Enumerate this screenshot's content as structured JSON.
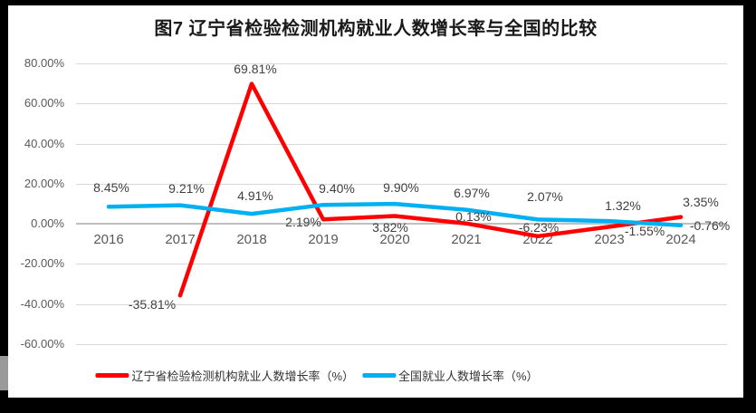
{
  "chart_data": {
    "type": "line",
    "title": "图7 辽宁省检验检测机构就业人数增长率与全国的比较",
    "categories": [
      "2016",
      "2017",
      "2018",
      "2019",
      "2020",
      "2021",
      "2022",
      "2023",
      "2024"
    ],
    "series": [
      {
        "name": "辽宁省检验检测机构就业人数增长率（%）",
        "color": "#ff0000",
        "values": [
          null,
          -35.81,
          69.81,
          2.19,
          3.82,
          0.13,
          -6.23,
          -1.55,
          3.35
        ]
      },
      {
        "name": "全国就业人数增长率（%）",
        "color": "#00b0f0",
        "values": [
          8.45,
          9.21,
          4.91,
          9.4,
          9.9,
          6.97,
          2.07,
          1.32,
          -0.76
        ]
      }
    ],
    "xlabel": "",
    "ylabel": "",
    "ylim": [
      -60,
      80
    ],
    "ytick_step": 20,
    "yticks": [
      "80.00%",
      "60.00%",
      "40.00%",
      "20.00%",
      "0.00%",
      "-20.00%",
      "-40.00%",
      "-60.00%"
    ],
    "grid": true,
    "data_labels": true,
    "data_label_format": "0.00%",
    "legend_position": "bottom"
  },
  "colors": {
    "frame_background": "#000000",
    "panel_background": "#ffffff",
    "gridline": "#d9d9d9",
    "axis_line": "#bfbfbf",
    "tick_text": "#595959",
    "data_label_text": "#404040",
    "series_liaoning": "#ff0000",
    "series_national": "#00b0f0"
  }
}
